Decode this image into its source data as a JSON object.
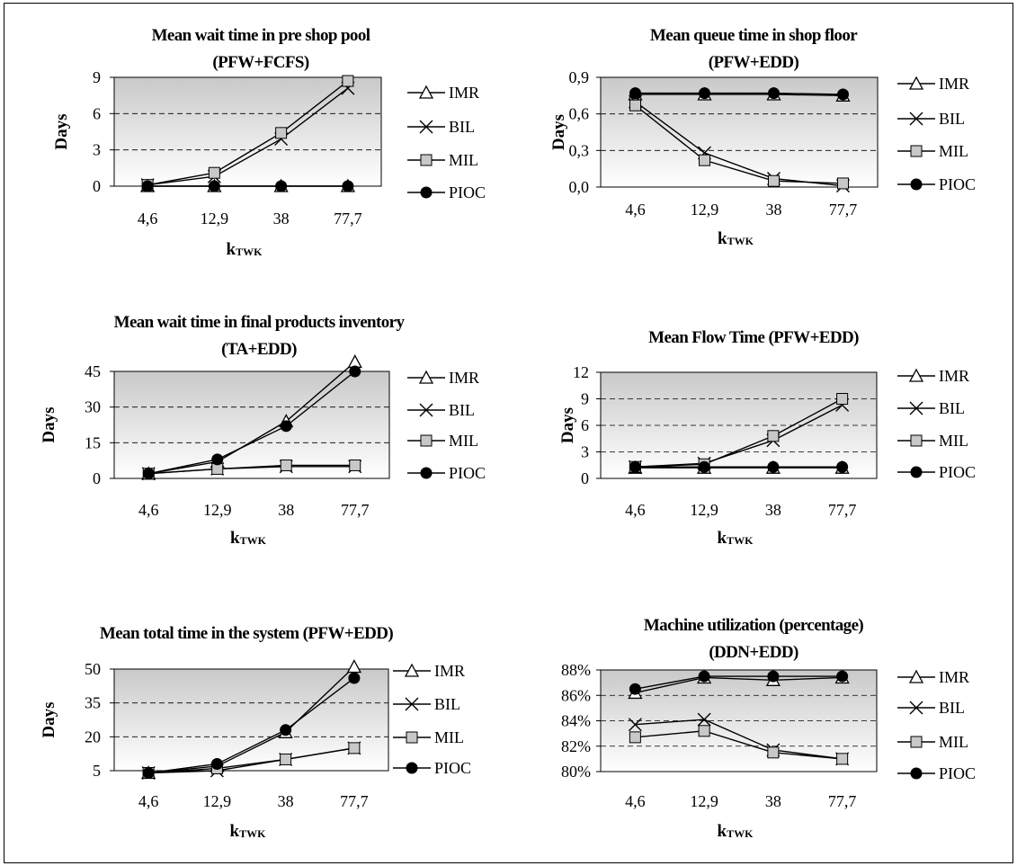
{
  "chart_data": [
    {
      "type": "line",
      "title": [
        "Mean wait time in pre shop pool",
        "(PFW+FCFS)"
      ],
      "ylabel": "Days",
      "xlabel": "k",
      "xlabel_sub": "TWK",
      "categories": [
        "4,6",
        "12,9",
        "38",
        "77,7"
      ],
      "yticks": [
        "0",
        "3",
        "6",
        "9"
      ],
      "ylim": [
        0,
        9
      ],
      "grid": "horizontal dashed",
      "legend": "right",
      "series": [
        {
          "name": "IMR",
          "marker": "triangle",
          "values": [
            0,
            0,
            0,
            0
          ]
        },
        {
          "name": "BIL",
          "marker": "x",
          "values": [
            0.1,
            0.8,
            3.9,
            8.1
          ]
        },
        {
          "name": "MIL",
          "marker": "square",
          "values": [
            0.1,
            1.1,
            4.4,
            8.7
          ]
        },
        {
          "name": "PIOC",
          "marker": "circle",
          "values": [
            0,
            0,
            0,
            0
          ]
        }
      ]
    },
    {
      "type": "line",
      "title": [
        "Mean queue time in shop floor",
        "(PFW+EDD)"
      ],
      "ylabel": "Days",
      "xlabel": "k",
      "xlabel_sub": "TWK",
      "categories": [
        "4,6",
        "12,9",
        "38",
        "77,7"
      ],
      "yticks": [
        "0,0",
        "0,3",
        "0,6",
        "0,9"
      ],
      "ylim": [
        0,
        0.9
      ],
      "grid": "horizontal dashed",
      "legend": "right",
      "series": [
        {
          "name": "IMR",
          "marker": "triangle",
          "values": [
            0.76,
            0.76,
            0.76,
            0.75
          ]
        },
        {
          "name": "BIL",
          "marker": "x",
          "values": [
            0.7,
            0.28,
            0.07,
            0.01
          ]
        },
        {
          "name": "MIL",
          "marker": "square",
          "values": [
            0.67,
            0.22,
            0.05,
            0.03
          ]
        },
        {
          "name": "PIOC",
          "marker": "circle",
          "values": [
            0.77,
            0.77,
            0.77,
            0.76
          ]
        }
      ]
    },
    {
      "type": "line",
      "title": [
        "Mean wait time in final products inventory",
        "(TA+EDD)"
      ],
      "ylabel": "Days",
      "xlabel": "k",
      "xlabel_sub": "TWK",
      "categories": [
        "4,6",
        "12,9",
        "38",
        "77,7"
      ],
      "yticks": [
        "0",
        "15",
        "30",
        "45"
      ],
      "ylim": [
        0,
        45
      ],
      "grid": "horizontal dashed",
      "legend": "right",
      "series": [
        {
          "name": "IMR",
          "marker": "triangle",
          "values": [
            2,
            7,
            24,
            49
          ]
        },
        {
          "name": "BIL",
          "marker": "x",
          "values": [
            2,
            4,
            5,
            5
          ]
        },
        {
          "name": "MIL",
          "marker": "square",
          "values": [
            2,
            4,
            5.5,
            5.5
          ]
        },
        {
          "name": "PIOC",
          "marker": "circle",
          "values": [
            2,
            8,
            22,
            45
          ]
        }
      ]
    },
    {
      "type": "line",
      "title": [
        "Mean Flow Time (PFW+EDD)"
      ],
      "ylabel": "Days",
      "xlabel": "k",
      "xlabel_sub": "TWK",
      "categories": [
        "4,6",
        "12,9",
        "38",
        "77,7"
      ],
      "yticks": [
        "0",
        "3",
        "6",
        "9",
        "12"
      ],
      "ylim": [
        0,
        12
      ],
      "grid": "horizontal dashed",
      "legend": "right",
      "series": [
        {
          "name": "IMR",
          "marker": "triangle",
          "values": [
            1.2,
            1.2,
            1.2,
            1.2
          ]
        },
        {
          "name": "BIL",
          "marker": "x",
          "values": [
            1.3,
            1.7,
            4.3,
            8.3
          ]
        },
        {
          "name": "MIL",
          "marker": "square",
          "values": [
            1.3,
            1.6,
            4.8,
            9.0
          ]
        },
        {
          "name": "PIOC",
          "marker": "circle",
          "values": [
            1.3,
            1.3,
            1.3,
            1.3
          ]
        }
      ]
    },
    {
      "type": "line",
      "title": [
        "Mean total time in the system (PFW+EDD)"
      ],
      "ylabel": "Days",
      "xlabel": "k",
      "xlabel_sub": "TWK",
      "categories": [
        "4,6",
        "12,9",
        "38",
        "77,7"
      ],
      "yticks": [
        "5",
        "20",
        "35",
        "50"
      ],
      "ylim": [
        5,
        50
      ],
      "grid": "horizontal dashed",
      "legend": "right",
      "series": [
        {
          "name": "IMR",
          "marker": "triangle",
          "values": [
            4,
            7,
            22,
            51
          ]
        },
        {
          "name": "BIL",
          "marker": "x",
          "values": [
            4,
            5,
            10,
            15
          ]
        },
        {
          "name": "MIL",
          "marker": "square",
          "values": [
            4,
            6,
            10,
            15
          ]
        },
        {
          "name": "PIOC",
          "marker": "circle",
          "values": [
            4,
            8,
            23,
            46
          ]
        }
      ]
    },
    {
      "type": "line",
      "title": [
        "Machine utilization (percentage)",
        "(DDN+EDD)"
      ],
      "ylabel": "",
      "xlabel": "k",
      "xlabel_sub": "TWK",
      "categories": [
        "4,6",
        "12,9",
        "38",
        "77,7"
      ],
      "yticks": [
        "80%",
        "82%",
        "84%",
        "86%",
        "88%"
      ],
      "ylim": [
        80,
        88
      ],
      "grid": "horizontal dashed",
      "legend": "right",
      "series": [
        {
          "name": "IMR",
          "marker": "triangle",
          "values": [
            86.2,
            87.4,
            87.2,
            87.4
          ]
        },
        {
          "name": "BIL",
          "marker": "x",
          "values": [
            83.7,
            84.1,
            81.7,
            81.0
          ]
        },
        {
          "name": "MIL",
          "marker": "square",
          "values": [
            82.7,
            83.2,
            81.5,
            81.0
          ]
        },
        {
          "name": "PIOC",
          "marker": "circle",
          "values": [
            86.5,
            87.5,
            87.5,
            87.5
          ]
        }
      ]
    }
  ]
}
